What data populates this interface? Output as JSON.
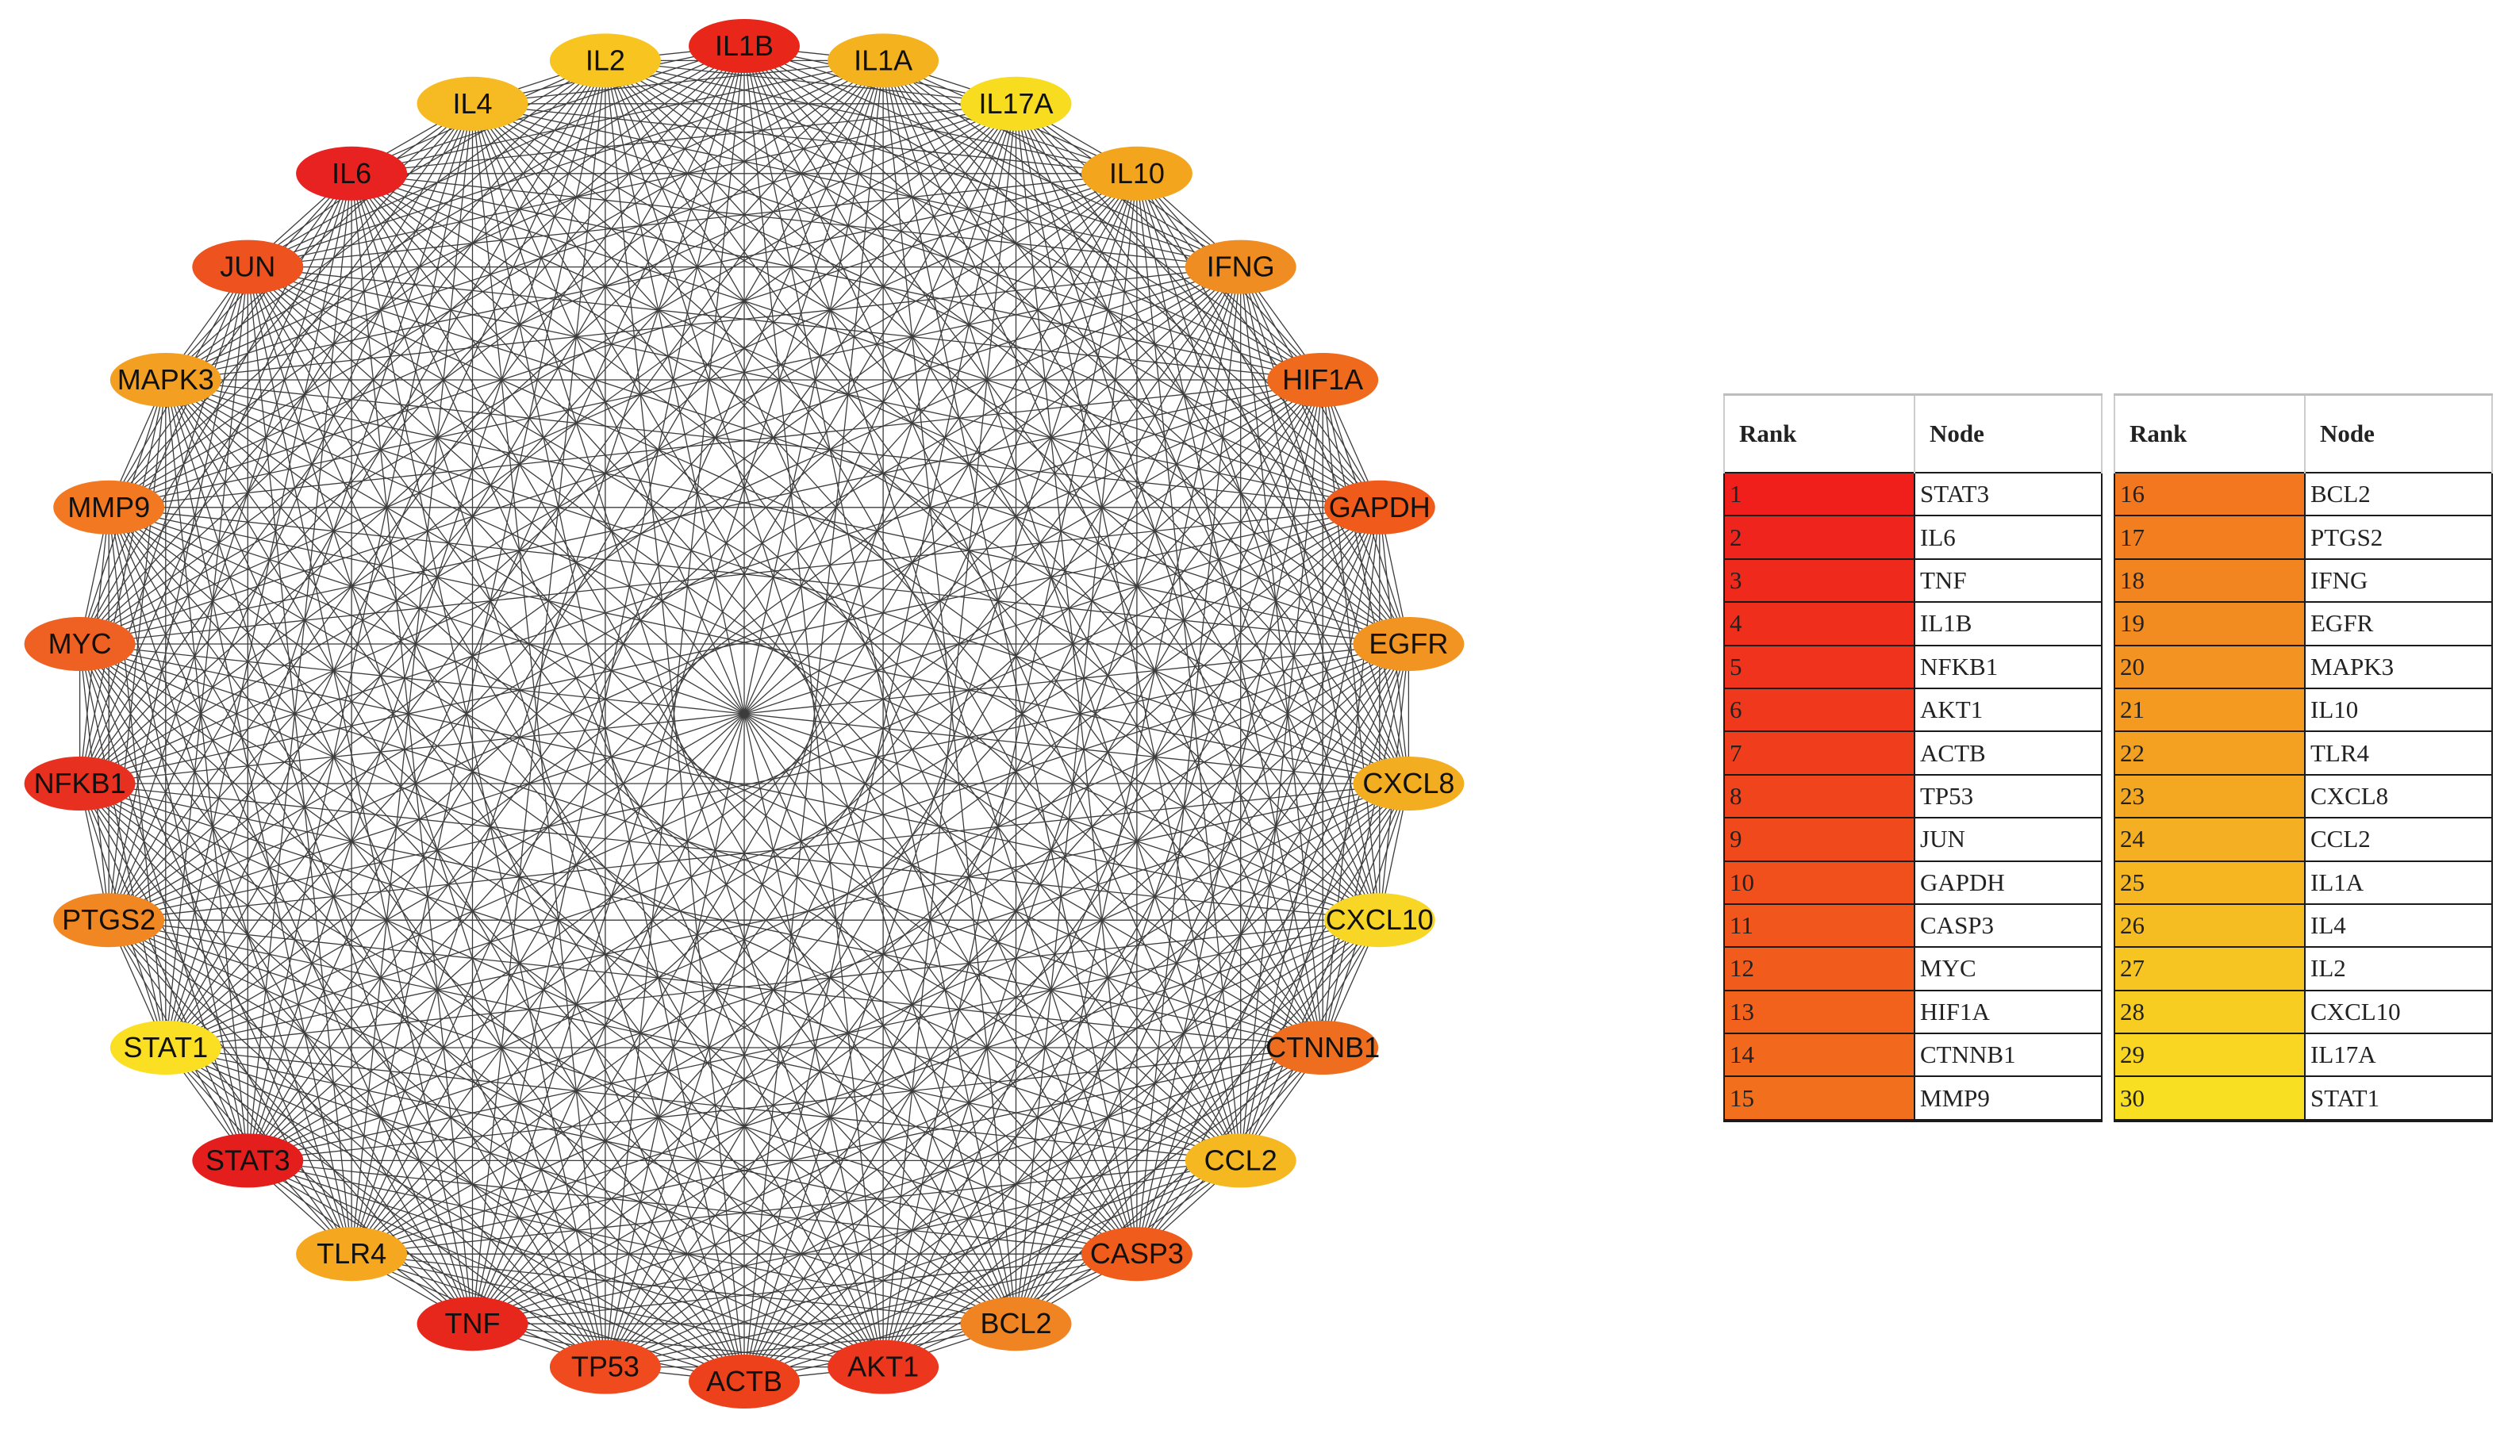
{
  "network": {
    "nodes": [
      {
        "label": "IL1B",
        "color": "#e8271a"
      },
      {
        "label": "IL1A",
        "color": "#f4b21f"
      },
      {
        "label": "IL17A",
        "color": "#f8dc20"
      },
      {
        "label": "IL10",
        "color": "#f3a51d"
      },
      {
        "label": "IFNG",
        "color": "#f08d22"
      },
      {
        "label": "HIF1A",
        "color": "#f06a1d"
      },
      {
        "label": "GAPDH",
        "color": "#f05b1c"
      },
      {
        "label": "EGFR",
        "color": "#f19421"
      },
      {
        "label": "CXCL8",
        "color": "#f3ad21"
      },
      {
        "label": "CXCL10",
        "color": "#f7d626"
      },
      {
        "label": "CTNNB1",
        "color": "#ee6d1f"
      },
      {
        "label": "CCL2",
        "color": "#f5b821"
      },
      {
        "label": "CASP3",
        "color": "#f05c1b"
      },
      {
        "label": "BCL2",
        "color": "#f08322"
      },
      {
        "label": "AKT1",
        "color": "#ec361e"
      },
      {
        "label": "ACTB",
        "color": "#ed411c"
      },
      {
        "label": "TP53",
        "color": "#ef4b1f"
      },
      {
        "label": "TNF",
        "color": "#e8271c"
      },
      {
        "label": "TLR4",
        "color": "#f4a71f"
      },
      {
        "label": "STAT3",
        "color": "#e41e1d"
      },
      {
        "label": "STAT1",
        "color": "#fbdf23"
      },
      {
        "label": "PTGS2",
        "color": "#f08722"
      },
      {
        "label": "NFKB1",
        "color": "#e7301f"
      },
      {
        "label": "MYC",
        "color": "#ef6123"
      },
      {
        "label": "MMP9",
        "color": "#f27921"
      },
      {
        "label": "MAPK3",
        "color": "#f3a022"
      },
      {
        "label": "JUN",
        "color": "#ee521e"
      },
      {
        "label": "IL6",
        "color": "#e72221"
      },
      {
        "label": "IL4",
        "color": "#f6bb22"
      },
      {
        "label": "IL2",
        "color": "#f8c520"
      }
    ]
  },
  "rank_table": {
    "headers": {
      "rank": "Rank",
      "node": "Node"
    },
    "left": [
      {
        "rank": "1",
        "node": "STAT3",
        "color": "#f01f1c"
      },
      {
        "rank": "2",
        "node": "IL6",
        "color": "#ef241c"
      },
      {
        "rank": "3",
        "node": "TNF",
        "color": "#ef291c"
      },
      {
        "rank": "4",
        "node": "IL1B",
        "color": "#ef2e1c"
      },
      {
        "rank": "5",
        "node": "NFKB1",
        "color": "#ef331c"
      },
      {
        "rank": "6",
        "node": "AKT1",
        "color": "#ef381c"
      },
      {
        "rank": "7",
        "node": "ACTB",
        "color": "#f03e1c"
      },
      {
        "rank": "8",
        "node": "TP53",
        "color": "#f0441c"
      },
      {
        "rank": "9",
        "node": "JUN",
        "color": "#f04a1c"
      },
      {
        "rank": "10",
        "node": "GAPDH",
        "color": "#f1501c"
      },
      {
        "rank": "11",
        "node": "CASP3",
        "color": "#f1561c"
      },
      {
        "rank": "12",
        "node": "MYC",
        "color": "#f15c1d"
      },
      {
        "rank": "13",
        "node": "HIF1A",
        "color": "#f2621d"
      },
      {
        "rank": "14",
        "node": "CTNNB1",
        "color": "#f2681d"
      },
      {
        "rank": "15",
        "node": "MMP9",
        "color": "#f26f1e"
      }
    ],
    "right": [
      {
        "rank": "16",
        "node": "BCL2",
        "color": "#f2771f"
      },
      {
        "rank": "17",
        "node": "PTGS2",
        "color": "#f27e1f"
      },
      {
        "rank": "18",
        "node": "IFNG",
        "color": "#f38520"
      },
      {
        "rank": "19",
        "node": "EGFR",
        "color": "#f38c20"
      },
      {
        "rank": "20",
        "node": "MAPK3",
        "color": "#f39321"
      },
      {
        "rank": "21",
        "node": "IL10",
        "color": "#f49a21"
      },
      {
        "rank": "22",
        "node": "TLR4",
        "color": "#f4a122"
      },
      {
        "rank": "23",
        "node": "CXCL8",
        "color": "#f4a822"
      },
      {
        "rank": "24",
        "node": "CCL2",
        "color": "#f5af22"
      },
      {
        "rank": "25",
        "node": "IL1A",
        "color": "#f5b622"
      },
      {
        "rank": "26",
        "node": "IL4",
        "color": "#f6bd22"
      },
      {
        "rank": "27",
        "node": "IL2",
        "color": "#f6c522"
      },
      {
        "rank": "28",
        "node": "CXCL10",
        "color": "#f7cd22"
      },
      {
        "rank": "29",
        "node": "IL17A",
        "color": "#f8d622"
      },
      {
        "rank": "30",
        "node": "STAT1",
        "color": "#f9df22"
      }
    ]
  }
}
